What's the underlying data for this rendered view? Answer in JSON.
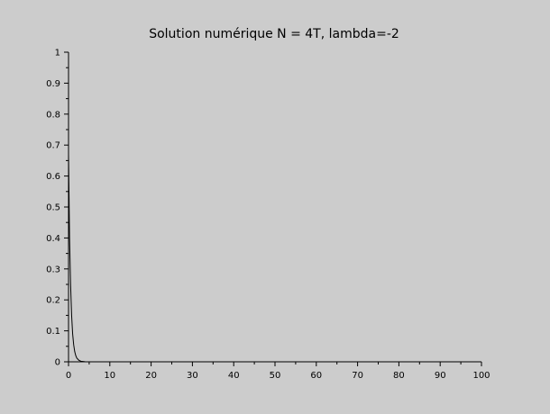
{
  "chart_data": {
    "type": "line",
    "title": "Solution numérique N = 4T, lambda=-2",
    "xlabel": "",
    "ylabel": "",
    "xlim": [
      0,
      100
    ],
    "ylim": [
      0,
      1
    ],
    "x_ticks": [
      0,
      10,
      20,
      30,
      40,
      50,
      60,
      70,
      80,
      90,
      100
    ],
    "y_ticks": [
      0,
      0.1,
      0.2,
      0.3,
      0.4,
      0.5,
      0.6,
      0.7,
      0.8,
      0.9,
      1
    ],
    "x_tick_labels": [
      "0",
      "10",
      "20",
      "30",
      "40",
      "50",
      "60",
      "70",
      "80",
      "90",
      "100"
    ],
    "y_tick_labels": [
      "0",
      "0.1",
      "0.2",
      "0.3",
      "0.4",
      "0.5",
      "0.6",
      "0.7",
      "0.8",
      "0.9",
      "1"
    ],
    "grid": false,
    "colors": {
      "background": "#cccccc",
      "line": "#000000",
      "axis": "#000000"
    },
    "series": [
      {
        "x": [
          0,
          0.25,
          0.5,
          0.75,
          1.0,
          1.25,
          1.5,
          1.75,
          2.0,
          2.5,
          3.0,
          4.0,
          5.0,
          10,
          20,
          40,
          60,
          80,
          100
        ],
        "values": [
          0.67,
          0.4,
          0.25,
          0.15,
          0.09,
          0.055,
          0.033,
          0.02,
          0.012,
          0.005,
          0.002,
          0.0005,
          0.0001,
          0,
          0,
          0,
          0,
          0,
          0
        ]
      }
    ]
  }
}
